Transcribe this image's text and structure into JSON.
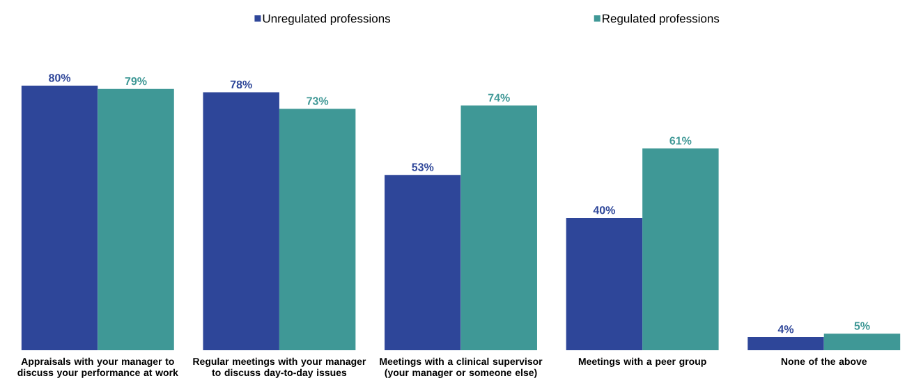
{
  "chart_data": {
    "type": "bar",
    "legend": "top",
    "categories": [
      "Appraisals with your manager to discuss your performance at work",
      "Regular meetings with your manager to discuss day-to-day issues",
      "Meetings with a clinical supervisor (your manager or someone else)",
      "Meetings with a peer group",
      "None of the above"
    ],
    "series": [
      {
        "name": "Unregulated professions",
        "color": "#2e4699",
        "values": [
          80,
          78,
          53,
          40,
          4
        ],
        "value_labels": [
          "80%",
          "78%",
          "53%",
          "40%",
          "4%"
        ]
      },
      {
        "name": "Regulated professions",
        "color": "#3f9896",
        "values": [
          79,
          73,
          74,
          61,
          5
        ],
        "value_labels": [
          "79%",
          "73%",
          "74%",
          "61%",
          "5%"
        ]
      }
    ]
  }
}
